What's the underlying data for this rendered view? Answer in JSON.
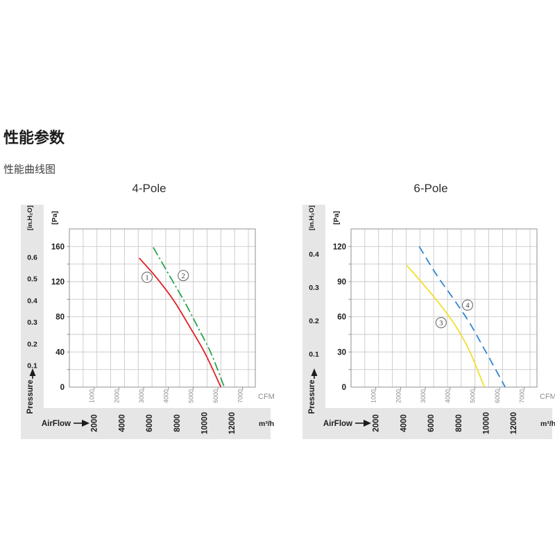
{
  "page": {
    "heading": "性能参数",
    "subheading": "性能曲线图"
  },
  "palette": {
    "band": "#e6e6e6",
    "grid": "#c9c9c9",
    "border": "#8f8f8f",
    "text": "#1c1c1c",
    "dim_text": "#8d8d8d",
    "marker_ring": "#6a6a6a",
    "marker_digit": "#3a3a3a"
  },
  "chart_data": [
    {
      "type": "line",
      "title": "4-Pole",
      "x_axis": {
        "label": "AirFlow",
        "unit_primary": "m³/h",
        "unit_secondary": "CFM",
        "m3h_ticks": [
          2000,
          4000,
          6000,
          8000,
          10000,
          12000
        ],
        "cfm_ticks": [
          1000,
          2000,
          3000,
          4000,
          5000,
          6000,
          7000
        ],
        "m3h_max": 13500,
        "m3h_grid_step": 1000
      },
      "y_axis": {
        "label": "Pressure",
        "unit_primary": "[Pa]",
        "unit_secondary": "[in.H₂O]",
        "pa_ticks": [
          0,
          40,
          80,
          120,
          160
        ],
        "inh2o_ticks": [
          0.1,
          0.2,
          0.3,
          0.4,
          0.5,
          0.6
        ],
        "pa_max": 180,
        "pa_grid_step": 20,
        "pa_per_inh2o": 247
      },
      "series": [
        {
          "id": "1",
          "name": "curve-1",
          "color": "#e01e25",
          "line_style": "solid",
          "points_m3h_pa": [
            [
              5060,
              147
            ],
            [
              6300,
              125
            ],
            [
              7600,
              98
            ],
            [
              8800,
              67
            ],
            [
              9900,
              37
            ],
            [
              11000,
              0
            ]
          ],
          "label_at_m3h_pa": [
            5640,
            125
          ]
        },
        {
          "id": "2",
          "name": "curve-2",
          "color": "#2aa34d",
          "line_style": "dash-dot",
          "points_m3h_pa": [
            [
              6090,
              159
            ],
            [
              7300,
              126
            ],
            [
              8400,
              96
            ],
            [
              9400,
              66
            ],
            [
              10300,
              38
            ],
            [
              11250,
              0
            ]
          ],
          "label_at_m3h_pa": [
            8270,
            127
          ]
        }
      ]
    },
    {
      "type": "line",
      "title": "6-Pole",
      "x_axis": {
        "label": "AirFlow",
        "unit_primary": "m³/h",
        "unit_secondary": "CFM",
        "m3h_ticks": [
          2000,
          4000,
          6000,
          8000,
          10000,
          12000
        ],
        "cfm_ticks": [
          1000,
          2000,
          3000,
          4000,
          5000,
          6000,
          7000
        ],
        "m3h_max": 13500,
        "m3h_grid_step": 1000
      },
      "y_axis": {
        "label": "Pressure",
        "unit_primary": "[Pa]",
        "unit_secondary": "[in.H₂O]",
        "pa_ticks": [
          0,
          30,
          60,
          90,
          120
        ],
        "inh2o_ticks": [
          0.1,
          0.2,
          0.3,
          0.4
        ],
        "pa_max": 135,
        "pa_grid_step": 15,
        "pa_per_inh2o": 284
      },
      "series": [
        {
          "id": "3",
          "name": "curve-3",
          "color": "#f2df28",
          "line_style": "solid",
          "points_m3h_pa": [
            [
              4040,
              104
            ],
            [
              5300,
              87
            ],
            [
              6500,
              70
            ],
            [
              7600,
              52
            ],
            [
              8600,
              31
            ],
            [
              9680,
              0
            ]
          ],
          "label_at_m3h_pa": [
            6540,
            55
          ]
        },
        {
          "id": "4",
          "name": "curve-4",
          "color": "#2f84d1",
          "line_style": "dash",
          "points_m3h_pa": [
            [
              4950,
              120
            ],
            [
              6200,
              96
            ],
            [
              7400,
              76
            ],
            [
              8600,
              55
            ],
            [
              9700,
              32
            ],
            [
              11200,
              0
            ]
          ],
          "label_at_m3h_pa": [
            8460,
            70
          ]
        }
      ]
    }
  ]
}
